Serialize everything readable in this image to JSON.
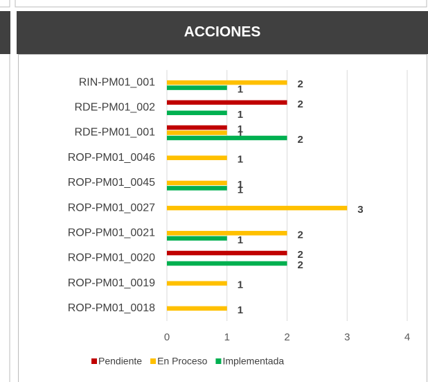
{
  "chart_data": {
    "type": "hbar",
    "title": "ACCIONES",
    "categories": [
      "RIN-PM01_001",
      "RDE-PM01_002",
      "RDE-PM01_001",
      "ROP-PM01_0046",
      "ROP-PM01_0045",
      "ROP-PM01_0027",
      "ROP-PM01_0021",
      "ROP-PM01_0020",
      "ROP-PM01_0019",
      "ROP-PM01_0018"
    ],
    "series": [
      {
        "name": "Pendiente",
        "color": "#c00000",
        "values": [
          null,
          2,
          1,
          null,
          null,
          null,
          null,
          2,
          null,
          null
        ]
      },
      {
        "name": "En Proceso",
        "color": "#ffc000",
        "values": [
          2,
          null,
          1,
          1,
          1,
          3,
          2,
          null,
          1,
          1
        ]
      },
      {
        "name": "Implementada",
        "color": "#00b050",
        "values": [
          1,
          1,
          2,
          null,
          1,
          null,
          1,
          2,
          null,
          null
        ]
      }
    ],
    "xlim": [
      0,
      4
    ],
    "xticks": [
      0,
      1,
      2,
      3,
      4
    ],
    "grid": true,
    "legend": "bottom"
  }
}
